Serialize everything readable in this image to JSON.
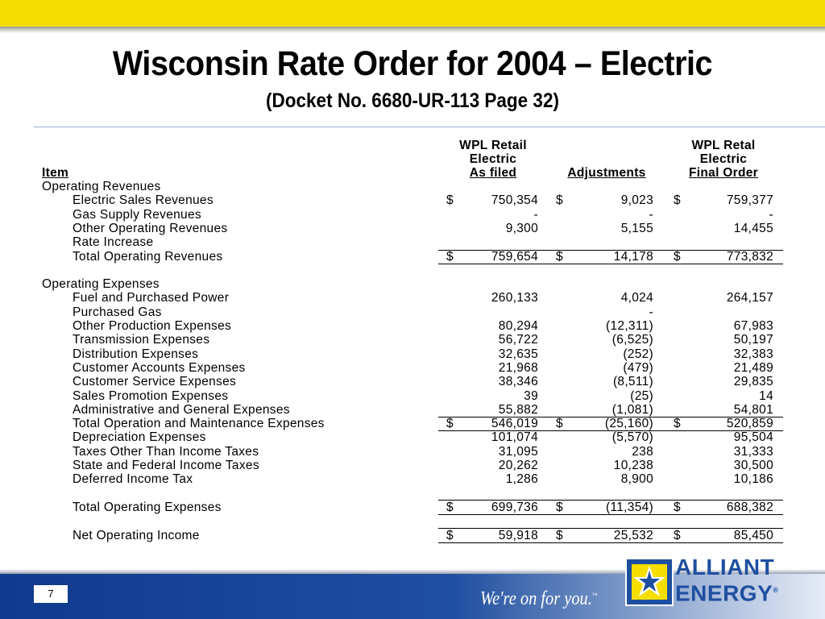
{
  "title": "Wisconsin Rate Order for 2004 – Electric",
  "subtitle": "(Docket No. 6680-UR-113 Page 32)",
  "headers": {
    "item": "Item",
    "col1_l1": "WPL Retail",
    "col1_l2": "Electric",
    "col1_l3": "As filed",
    "col2_l3": "Adjustments",
    "col3_l1": "WPL Retal",
    "col3_l2": "Electric",
    "col3_l3": "Final Order"
  },
  "rows": [
    {
      "label": "Operating Revenues",
      "indent": false,
      "c1": "",
      "c2": "",
      "c3": ""
    },
    {
      "label": "Electric Sales Revenues",
      "indent": true,
      "dollar": true,
      "c1": "750,354",
      "c2": "9,023",
      "c3": "759,377"
    },
    {
      "label": "Gas Supply Revenues",
      "indent": true,
      "c1": "-",
      "c2": "-",
      "c3": "-"
    },
    {
      "label": "Other Operating Revenues",
      "indent": true,
      "c1": "9,300",
      "c2": "5,155",
      "c3": "14,455"
    },
    {
      "label": "Rate Increase",
      "indent": true,
      "c1": "",
      "c2": "",
      "c3": ""
    },
    {
      "label": "Total Operating Revenues",
      "indent": true,
      "dollar": true,
      "c1": "759,654",
      "c2": "14,178",
      "c3": "773,832"
    },
    {
      "label": "",
      "c1": "",
      "c2": "",
      "c3": ""
    },
    {
      "label": "Operating Expenses",
      "indent": false,
      "c1": "",
      "c2": "",
      "c3": ""
    },
    {
      "label": "Fuel and Purchased Power",
      "indent": true,
      "c1": "260,133",
      "c2": "4,024",
      "c3": "264,157"
    },
    {
      "label": "Purchased Gas",
      "indent": true,
      "c1": "",
      "c2": "-",
      "c3": ""
    },
    {
      "label": "Other Production Expenses",
      "indent": true,
      "c1": "80,294",
      "c2": "(12,311)",
      "c3": "67,983"
    },
    {
      "label": "Transmission Expenses",
      "indent": true,
      "c1": "56,722",
      "c2": "(6,525)",
      "c3": "50,197"
    },
    {
      "label": "Distribution Expenses",
      "indent": true,
      "c1": "32,635",
      "c2": "(252)",
      "c3": "32,383"
    },
    {
      "label": "Customer Accounts Expenses",
      "indent": true,
      "c1": "21,968",
      "c2": "(479)",
      "c3": "21,489"
    },
    {
      "label": "Customer Service Expenses",
      "indent": true,
      "c1": "38,346",
      "c2": "(8,511)",
      "c3": "29,835"
    },
    {
      "label": "Sales Promotion Expenses",
      "indent": true,
      "c1": "39",
      "c2": "(25)",
      "c3": "14"
    },
    {
      "label": "Administrative and General Expenses",
      "indent": true,
      "c1": "55,882",
      "c2": "(1,081)",
      "c3": "54,801"
    },
    {
      "label": "Total Operation and Maintenance Expenses",
      "indent": true,
      "dollar": true,
      "c1": "546,019",
      "c2": "(25,160)",
      "c3": "520,859"
    },
    {
      "label": "Depreciation Expenses",
      "indent": true,
      "c1": "101,074",
      "c2": "(5,570)",
      "c3": "95,504"
    },
    {
      "label": "Taxes Other Than Income Taxes",
      "indent": true,
      "c1": "31,095",
      "c2": "238",
      "c3": "31,333"
    },
    {
      "label": "State and Federal Income Taxes",
      "indent": true,
      "c1": "20,262",
      "c2": "10,238",
      "c3": "30,500"
    },
    {
      "label": "Deferred Income Tax",
      "indent": true,
      "c1": "1,286",
      "c2": "8,900",
      "c3": "10,186"
    },
    {
      "label": "",
      "c1": "",
      "c2": "",
      "c3": ""
    },
    {
      "label": "Total Operating Expenses",
      "indent": true,
      "dollar": true,
      "c1": "699,736",
      "c2": "(11,354)",
      "c3": "688,382"
    },
    {
      "label": "",
      "c1": "",
      "c2": "",
      "c3": ""
    },
    {
      "label": "Net Operating Income",
      "indent": true,
      "dollar": true,
      "c1": "59,918",
      "c2": "25,532",
      "c3": "85,450"
    }
  ],
  "dollar_sign": "$",
  "page_number": "7",
  "tagline": "We're on for you.",
  "tagline_mark": "™",
  "logo": {
    "line1": "ALLIANT",
    "line2": "ENERGY",
    "mark": "®"
  },
  "colors": {
    "top_bar": "#f6df00",
    "bottom_bar": "#1f4fa0",
    "logo_blue": "#1f4fa0"
  }
}
